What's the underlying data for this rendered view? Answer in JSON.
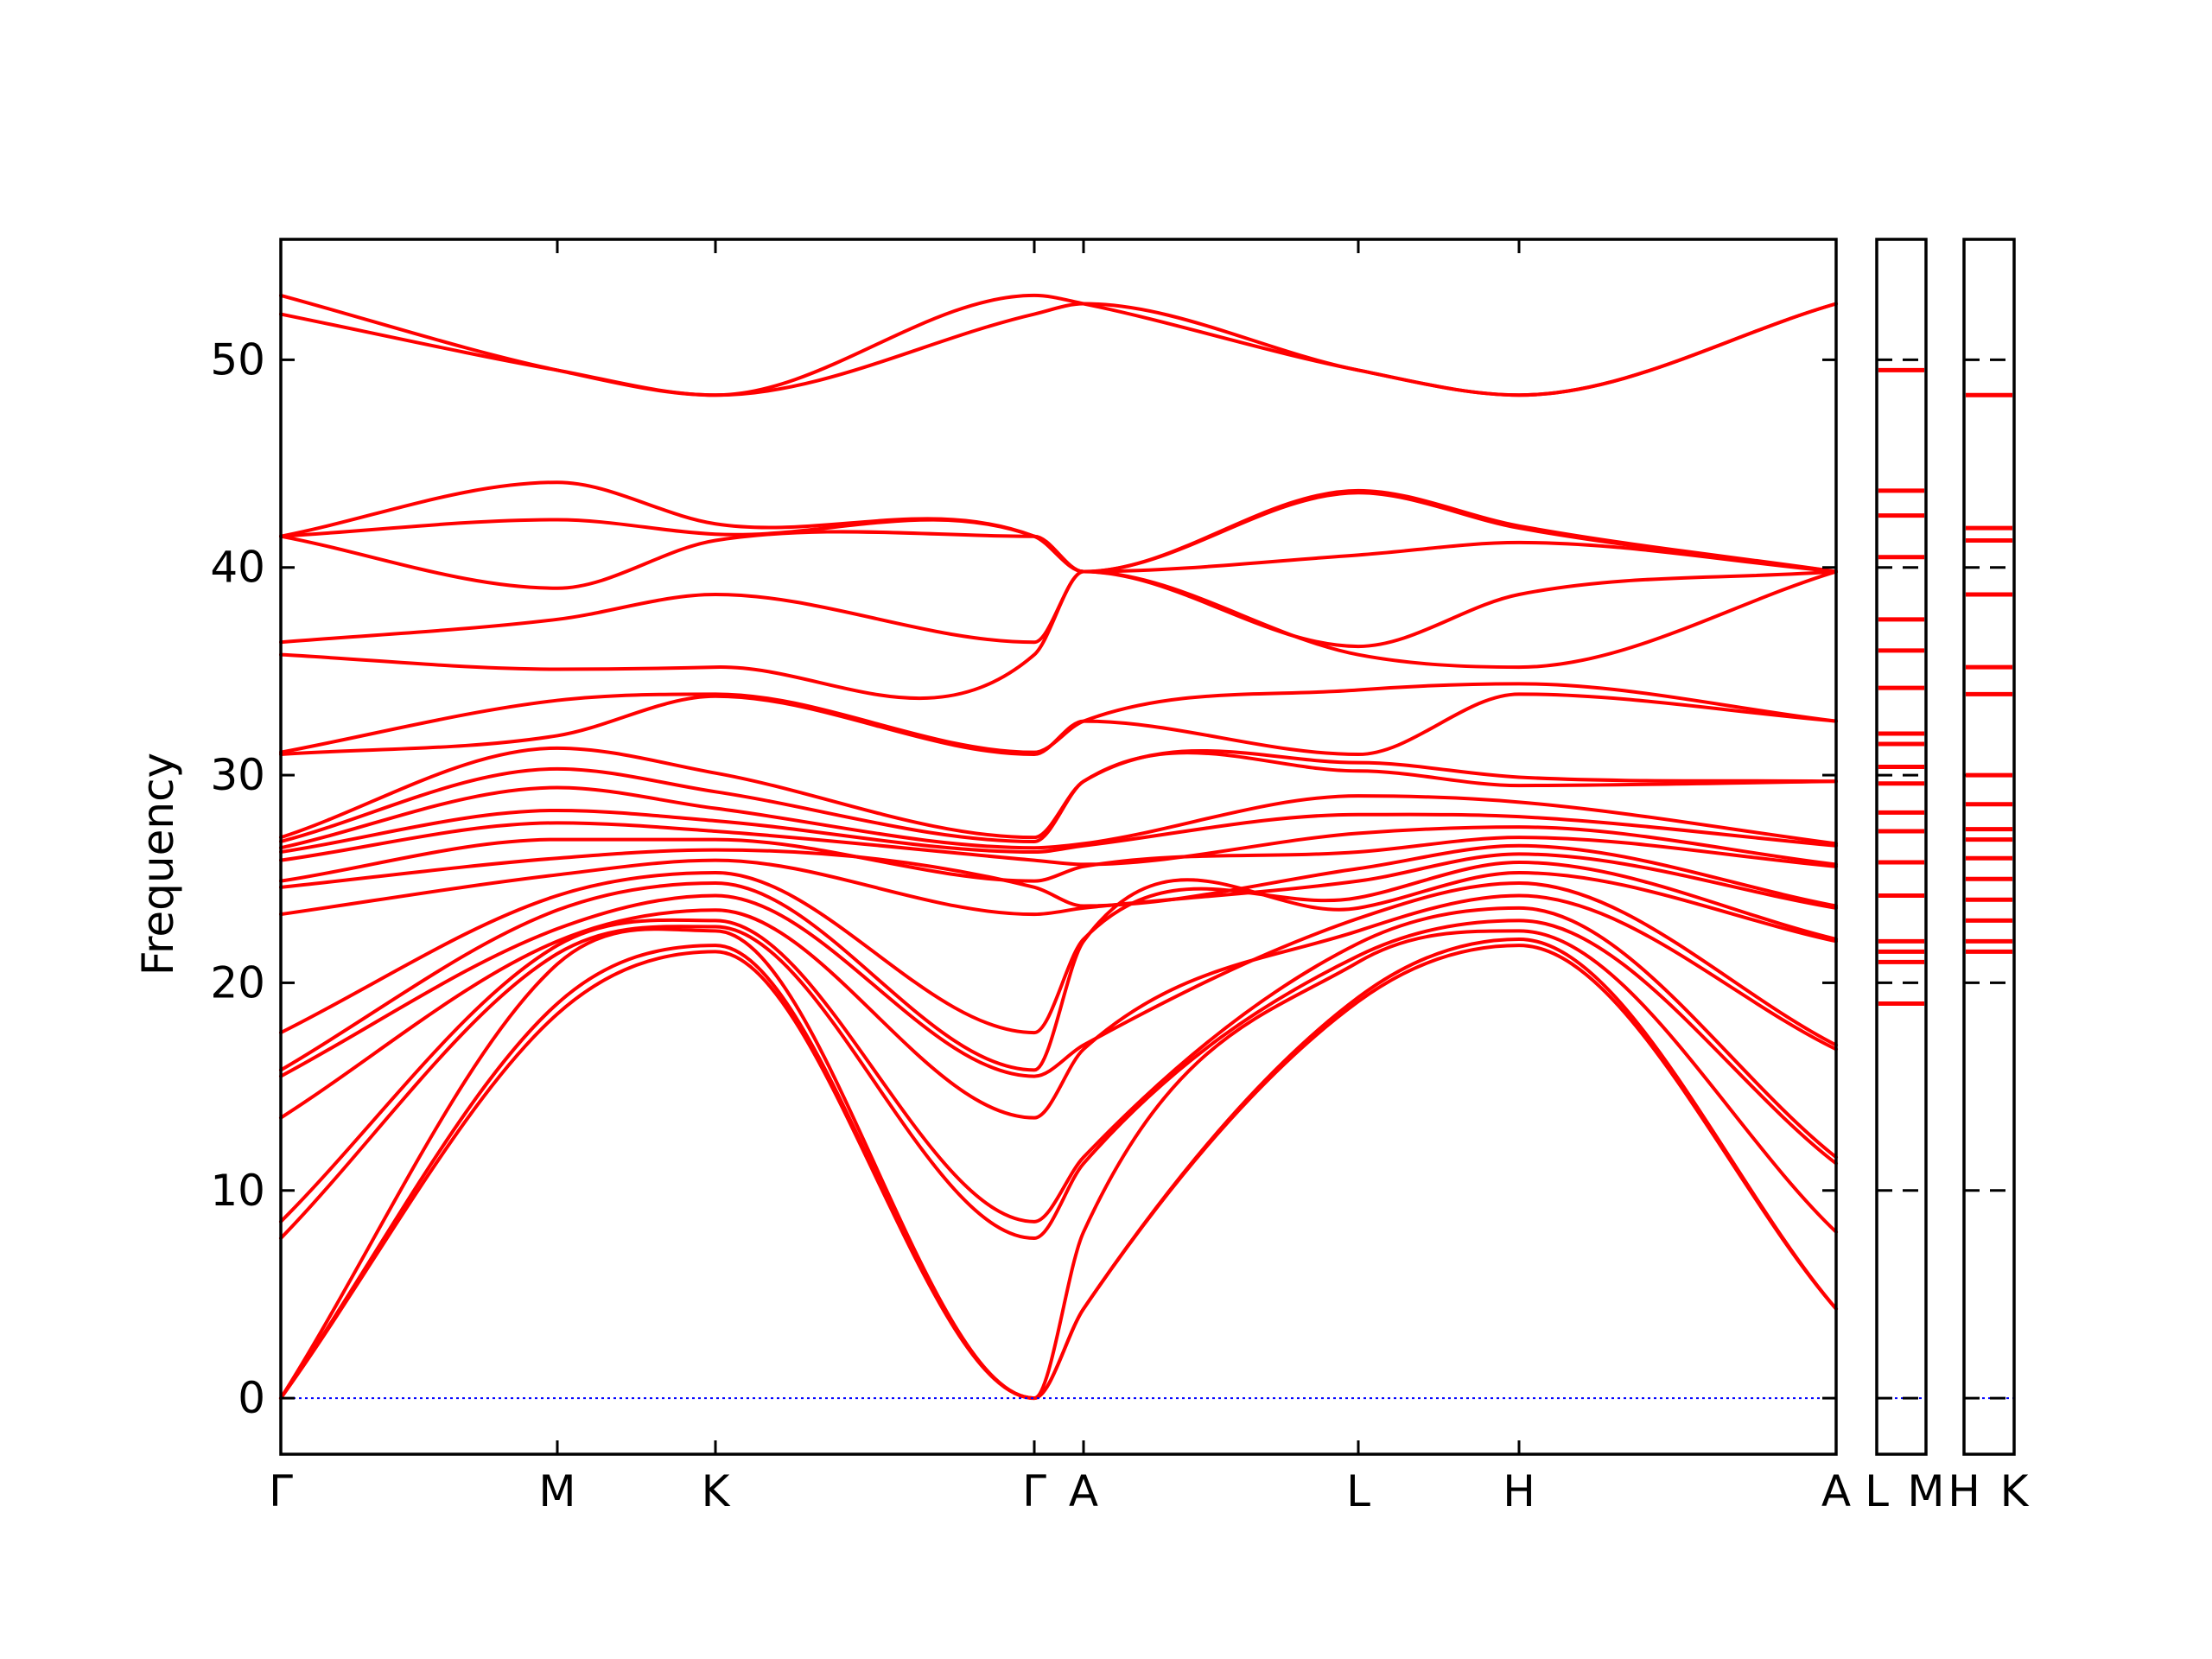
{
  "chart_data": {
    "type": "line",
    "ylabel": "Frequency",
    "ylim": [
      -2.7,
      55.8
    ],
    "yticks": [
      0,
      10,
      20,
      30,
      40,
      50
    ],
    "path_points": [
      "Γ",
      "M",
      "K",
      "Γ",
      "A",
      "L",
      "H",
      "A"
    ],
    "x_tick_labels": [
      "Γ",
      "M",
      "K",
      "Γ",
      "A",
      "L",
      "H",
      "A"
    ],
    "side_panel_labels": [
      [
        "L",
        "M"
      ],
      [
        "H",
        "K"
      ]
    ],
    "zero_line": true,
    "colors": {
      "band": "#ff0000",
      "zero_line": "#0000ff"
    },
    "series": [
      {
        "values": [
          0,
          18.5,
          21.5,
          0,
          4.3,
          19.1,
          21.8,
          4.3
        ]
      },
      {
        "values": [
          0,
          19.0,
          21.8,
          0,
          4.3,
          19.3,
          22.1,
          4.3
        ]
      },
      {
        "values": [
          0,
          20.9,
          22.5,
          0,
          8.0,
          21.0,
          22.5,
          8.0
        ]
      },
      {
        "values": [
          7.7,
          21.4,
          22.7,
          7.7,
          11.3,
          21.3,
          23.0,
          11.3
        ]
      },
      {
        "values": [
          8.5,
          21.8,
          23.0,
          8.5,
          11.6,
          21.9,
          23.6,
          11.6
        ]
      },
      {
        "values": [
          13.5,
          22.0,
          23.5,
          13.5,
          16.8,
          22.5,
          24.2,
          16.8
        ]
      },
      {
        "values": [
          15.5,
          22.6,
          24.2,
          15.5,
          17.0,
          23.1,
          24.8,
          17.0
        ]
      },
      {
        "values": [
          15.8,
          23.5,
          24.8,
          15.8,
          22.0,
          23.6,
          25.3,
          22.0
        ]
      },
      {
        "values": [
          17.6,
          24.2,
          25.3,
          17.6,
          22.1,
          24.1,
          25.8,
          22.1
        ]
      },
      {
        "values": [
          23.3,
          25.2,
          25.9,
          23.3,
          23.6,
          24.9,
          26.2,
          23.6
        ]
      },
      {
        "values": [
          24.6,
          26.0,
          26.4,
          24.6,
          23.7,
          25.5,
          26.6,
          23.7
        ]
      },
      {
        "values": [
          24.9,
          26.9,
          26.9,
          24.9,
          25.6,
          26.3,
          27.0,
          25.6
        ]
      },
      {
        "values": [
          25.9,
          27.7,
          27.3,
          25.9,
          25.7,
          27.2,
          27.5,
          25.7
        ]
      },
      {
        "values": [
          26.3,
          28.3,
          27.8,
          26.3,
          26.6,
          28.1,
          28.0,
          26.6
        ]
      },
      {
        "values": [
          26.5,
          29.4,
          28.4,
          26.5,
          26.7,
          29.0,
          28.7,
          26.7
        ]
      },
      {
        "values": [
          26.8,
          30.3,
          29.2,
          26.8,
          29.7,
          30.2,
          29.5,
          29.7
        ]
      },
      {
        "values": [
          27.0,
          31.3,
          30.1,
          27.0,
          29.7,
          30.6,
          29.9,
          29.7
        ]
      },
      {
        "values": [
          31.0,
          31.9,
          33.8,
          31.0,
          32.6,
          31.0,
          33.9,
          32.6
        ]
      },
      {
        "values": [
          31.1,
          33.6,
          33.9,
          31.1,
          32.6,
          34.1,
          34.4,
          32.6
        ]
      },
      {
        "values": [
          35.8,
          35.1,
          35.2,
          35.8,
          39.8,
          35.8,
          35.2,
          39.8
        ]
      },
      {
        "values": [
          36.4,
          37.5,
          38.7,
          36.4,
          39.8,
          36.2,
          38.7,
          39.8
        ]
      },
      {
        "values": [
          41.5,
          39.0,
          41.3,
          41.5,
          39.8,
          40.6,
          41.2,
          39.8
        ]
      },
      {
        "values": [
          41.5,
          42.3,
          41.6,
          41.5,
          39.8,
          43.6,
          41.9,
          39.8
        ]
      },
      {
        "values": [
          41.5,
          44.1,
          42.1,
          41.5,
          39.8,
          43.7,
          42.0,
          39.8
        ]
      },
      {
        "values": [
          52.2,
          49.5,
          48.3,
          52.2,
          52.7,
          49.5,
          48.3,
          52.7
        ]
      },
      {
        "values": [
          53.1,
          49.5,
          48.3,
          53.1,
          52.7,
          49.5,
          48.3,
          52.7
        ]
      }
    ],
    "side_panels": [
      {
        "levels": [
          19.0,
          21.0,
          21.5,
          22.0,
          24.2,
          25.8,
          27.3,
          28.2,
          29.6,
          30.4,
          31.5,
          32.0,
          34.2,
          36.0,
          37.5,
          40.5,
          42.5,
          43.7,
          49.5
        ]
      },
      {
        "levels": [
          21.5,
          22.0,
          23.0,
          24.0,
          25.0,
          26.0,
          26.9,
          27.4,
          28.6,
          30.0,
          33.9,
          35.2,
          38.7,
          41.3,
          41.9,
          48.3
        ]
      }
    ]
  }
}
